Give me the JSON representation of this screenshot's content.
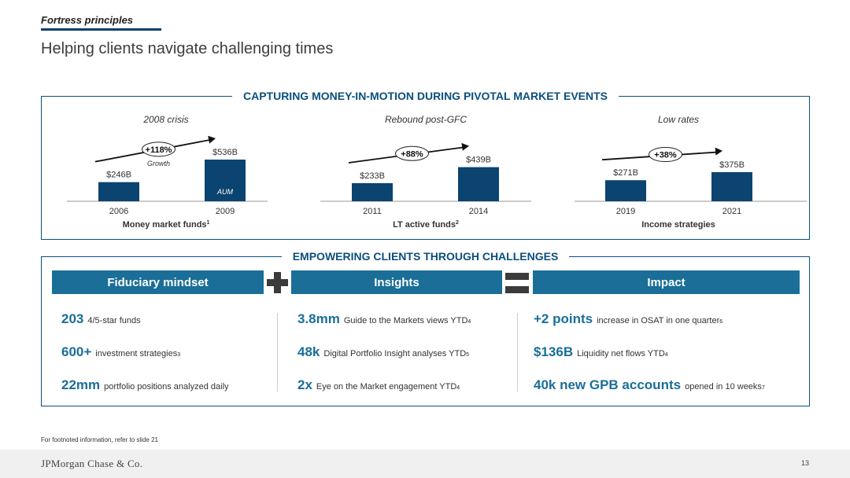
{
  "header": {
    "kicker": "Fortress principles",
    "title": "Helping clients navigate challenging times"
  },
  "section1": {
    "heading": "CAPTURING MONEY-IN-MOTION DURING PIVOTAL MARKET EVENTS"
  },
  "chart_data": [
    {
      "type": "bar",
      "title": "2008 crisis",
      "xlabel": "Money market funds",
      "xlabel_sup": "1",
      "categories": [
        "2006",
        "2009"
      ],
      "values": [
        246,
        536
      ],
      "value_labels": [
        "$246B",
        "$536B"
      ],
      "growth_label": "+118%",
      "annotations": [
        "Growth",
        "AUM"
      ],
      "color": "#0b4470"
    },
    {
      "type": "bar",
      "title": "Rebound post-GFC",
      "xlabel": "LT active funds",
      "xlabel_sup": "2",
      "categories": [
        "2011",
        "2014"
      ],
      "values": [
        233,
        439
      ],
      "value_labels": [
        "$233B",
        "$439B"
      ],
      "growth_label": "+88%",
      "annotations": [],
      "color": "#0b4470"
    },
    {
      "type": "bar",
      "title": "Low rates",
      "xlabel": "Income strategies",
      "xlabel_sup": "",
      "categories": [
        "2019",
        "2021"
      ],
      "values": [
        271,
        375
      ],
      "value_labels": [
        "$271B",
        "$375B"
      ],
      "growth_label": "+38%",
      "annotations": [],
      "color": "#0b4470"
    }
  ],
  "section2": {
    "heading": "EMPOWERING CLIENTS THROUGH CHALLENGES",
    "banners": [
      "Fiduciary mindset",
      "Insights",
      "Impact"
    ],
    "columns": [
      [
        {
          "num": "203",
          "desc": "4/5-star funds",
          "sup": ""
        },
        {
          "num": "600+",
          "desc": "investment strategies",
          "sup": "3"
        },
        {
          "num": "22mm",
          "desc": "portfolio positions analyzed daily",
          "sup": ""
        }
      ],
      [
        {
          "num": "3.8mm",
          "desc": "Guide to the Markets views YTD",
          "sup": "4"
        },
        {
          "num": "48k",
          "desc": "Digital Portfolio Insight analyses YTD",
          "sup": "5"
        },
        {
          "num": "2x",
          "desc": "Eye on the Market engagement YTD",
          "sup": "4"
        }
      ],
      [
        {
          "num": "+2 points",
          "desc": "increase in OSAT in one quarter",
          "sup": "6"
        },
        {
          "num": "$136B",
          "desc": "Liquidity net flows YTD",
          "sup": "4"
        },
        {
          "num": "40k new GPB accounts",
          "desc": "opened in 10 weeks",
          "sup": "7"
        }
      ]
    ]
  },
  "footnote": "For footnoted information, refer to slide 21",
  "footer": {
    "logo": "JPMorgan Chase & Co.",
    "page": "13"
  }
}
